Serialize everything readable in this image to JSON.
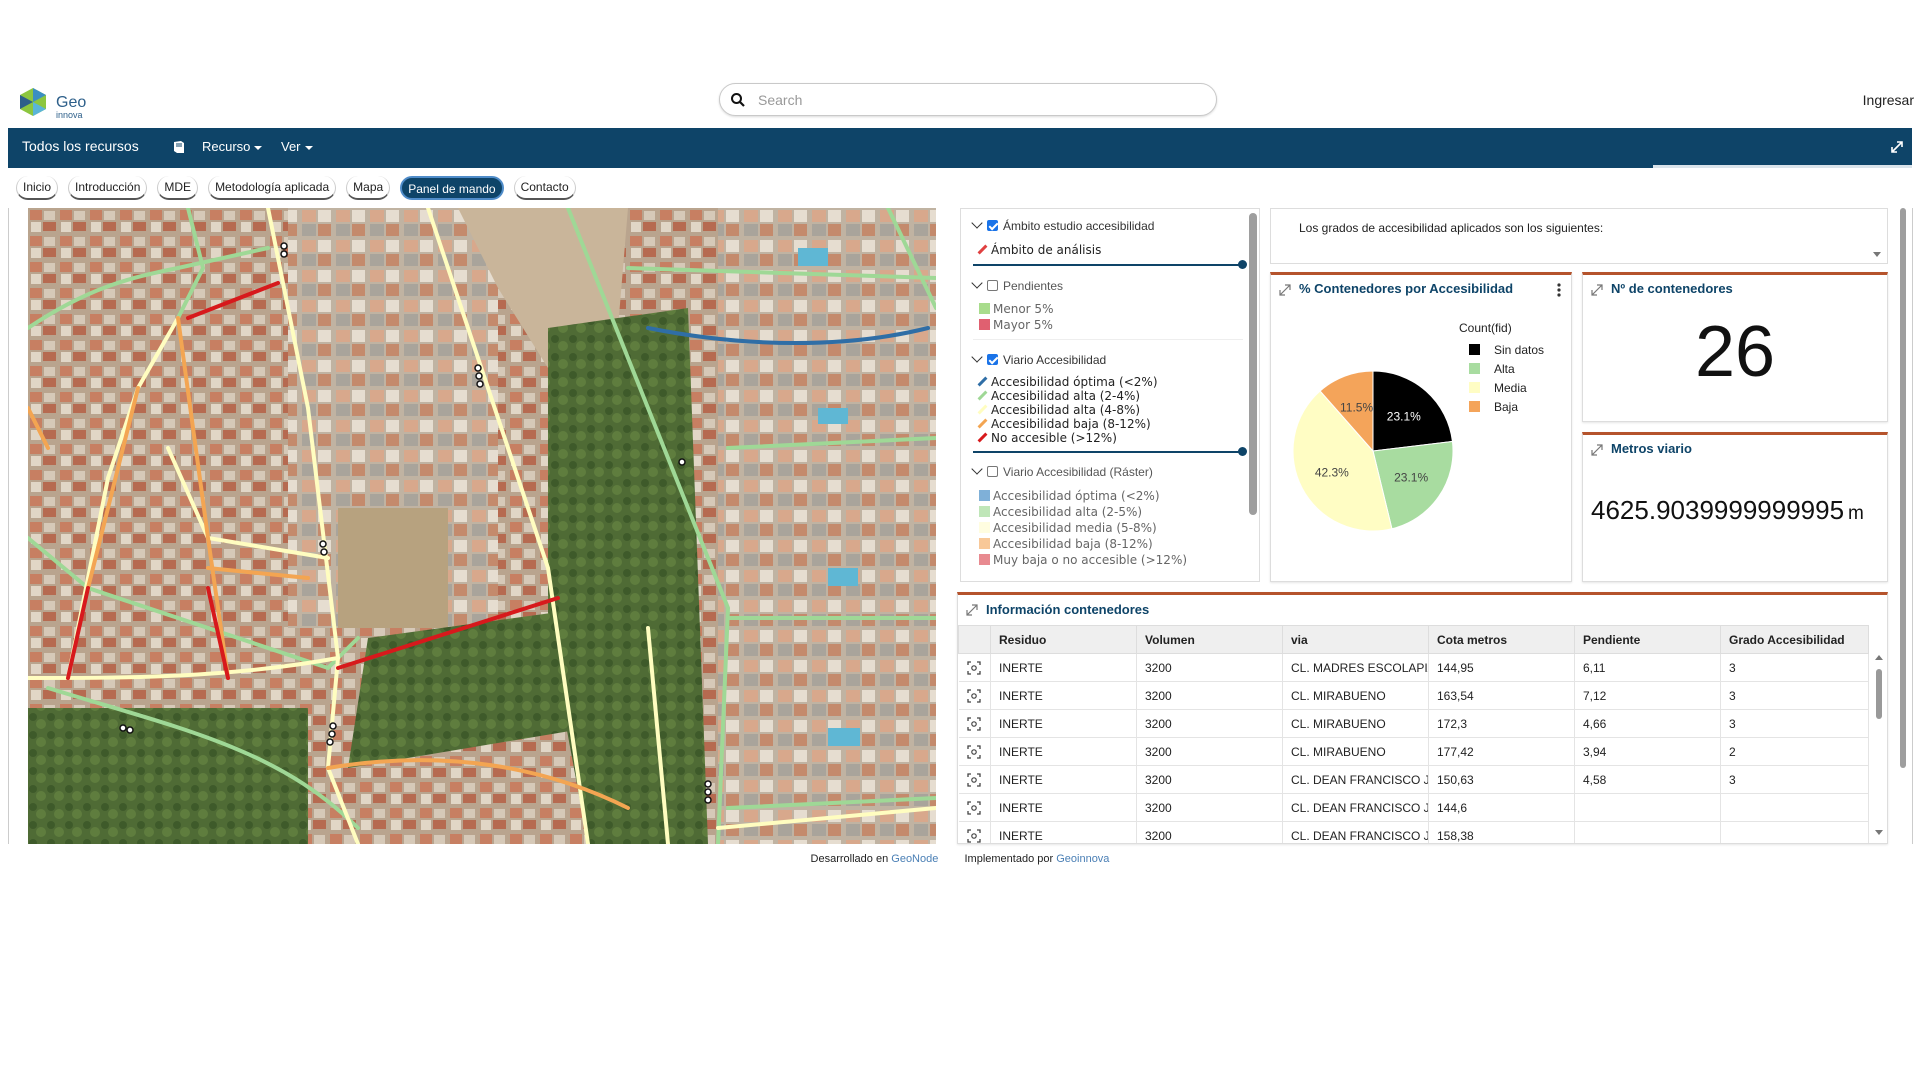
{
  "header": {
    "logo_text": "Geo",
    "logo_sub": "innova",
    "search_placeholder": "Search",
    "login_label": "Ingresar"
  },
  "navbar": {
    "title": "Todos los recursos",
    "menu_recurso": "Recurso",
    "menu_ver": "Ver"
  },
  "tabs": [
    "Inicio",
    "Introducción",
    "MDE",
    "Metodología aplicada",
    "Mapa",
    "Panel de mando",
    "Contacto"
  ],
  "active_tab": "Panel de mando",
  "legend": {
    "groups": [
      {
        "label": "Ámbito estudio accesibilidad",
        "checked": true,
        "items": [
          {
            "label": "Ámbito de análisis",
            "color": "#e04040"
          }
        ]
      },
      {
        "label": "Pendientes",
        "checked": false,
        "items": [
          {
            "label": "Menor 5%",
            "color": "#a8dc8c"
          },
          {
            "label": "Mayor 5%",
            "color": "#e06070"
          }
        ]
      },
      {
        "label": "Viario Accesibilidad",
        "checked": true,
        "items": [
          {
            "label": "Accesibilidad óptima (<2%)",
            "color": "#2f6ea6"
          },
          {
            "label": "Accesibilidad alta (2-4%)",
            "color": "#9fd896"
          },
          {
            "label": "Accesibilidad alta (4-8%)",
            "color": "#fffdc0"
          },
          {
            "label": "Accesibilidad baja (8-12%)",
            "color": "#f3a552"
          },
          {
            "label": "No accesible (>12%)",
            "color": "#d7191c"
          }
        ]
      },
      {
        "label": "Viario Accesibilidad (Ráster)",
        "checked": false,
        "items": [
          {
            "label": "Accesibilidad óptima (<2%)",
            "color": "#7fb0d8"
          },
          {
            "label": "Accesibilidad alta (2-5%)",
            "color": "#bfe6b8"
          },
          {
            "label": "Accesibilidad media (5-8%)",
            "color": "#fffde0"
          },
          {
            "label": "Accesibilidad baja (8-12%)",
            "color": "#f8c898"
          },
          {
            "label": "Muy baja o no accesible (>12%)",
            "color": "#e88a90"
          }
        ]
      }
    ]
  },
  "text_card": {
    "text": "Los grados de accesibilidad aplicados son los siguientes:"
  },
  "pie_card": {
    "title": "% Contenedores por Accesibilidad",
    "legend_title": "Count(fid)"
  },
  "chart_data": {
    "type": "pie",
    "title": "% Contenedores por Accesibilidad",
    "legend_title": "Count(fid)",
    "slices": [
      {
        "label": "Sin datos",
        "value": 23.1,
        "display": "23.1%",
        "color": "#000000"
      },
      {
        "label": "Alta",
        "value": 23.1,
        "display": "23.1%",
        "color": "#a8dca0"
      },
      {
        "label": "Media",
        "value": 42.3,
        "display": "42.3%",
        "color": "#fffdc4"
      },
      {
        "label": "Baja",
        "value": 11.5,
        "display": "11.5%",
        "color": "#f4a45a"
      }
    ],
    "legend_position": "top-right"
  },
  "count_card": {
    "title": "Nº de contenedores",
    "value": "26"
  },
  "metros_card": {
    "title": "Metros viario",
    "value": "4625.9039999999995",
    "unit": "m"
  },
  "table": {
    "title": "Información contenedores",
    "columns": [
      "Residuo",
      "Volumen",
      "via",
      "Cota metros",
      "Pendiente",
      "Grado Accesibilidad"
    ],
    "rows": [
      [
        "INERTE",
        "3200",
        "CL. MADRES ESCOLAPI/",
        "144,95",
        "6,11",
        "3"
      ],
      [
        "INERTE",
        "3200",
        "CL. MIRABUENO",
        "163,54",
        "7,12",
        "3"
      ],
      [
        "INERTE",
        "3200",
        "CL. MIRABUENO",
        "172,3",
        "4,66",
        "3"
      ],
      [
        "INERTE",
        "3200",
        "CL. MIRABUENO",
        "177,42",
        "3,94",
        "2"
      ],
      [
        "INERTE",
        "3200",
        "CL. DEAN FRANCISCO J",
        "150,63",
        "4,58",
        "3"
      ],
      [
        "INERTE",
        "3200",
        "CL. DEAN FRANCISCO J",
        "144,6",
        "",
        ""
      ],
      [
        "INERTE",
        "3200",
        "CL. DEAN FRANCISCO J",
        "158,38",
        "",
        ""
      ]
    ]
  },
  "footer": {
    "dev_label": "Desarrollado en",
    "dev_link": "GeoNode",
    "impl_label": "Implementado por",
    "impl_link": "Geoinnova"
  }
}
